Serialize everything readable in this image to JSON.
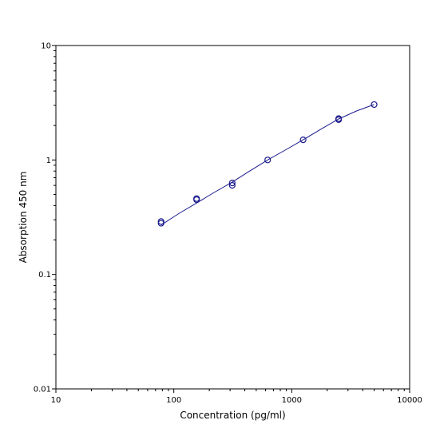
{
  "chart_data": {
    "type": "scatter",
    "title": "",
    "xlabel": "Concentration (pg/ml)",
    "ylabel": "Absorption 450 nm",
    "xscale": "log",
    "yscale": "log",
    "xlim": [
      10,
      10000
    ],
    "ylim": [
      0.01,
      10
    ],
    "x_ticks": [
      10,
      100,
      1000,
      10000
    ],
    "x_tick_labels": [
      "10",
      "100",
      "1000",
      "10000"
    ],
    "y_ticks": [
      0.01,
      0.1,
      1,
      10
    ],
    "y_tick_labels": [
      "0.01",
      "0.1",
      "1",
      "10"
    ],
    "grid": false,
    "legend": "none",
    "colors": {
      "points": "#1a1a8c",
      "curve": "#1a1a8c",
      "axes": "#000000"
    },
    "series": [
      {
        "values": [
          {
            "x": 78,
            "y": 0.29
          },
          {
            "x": 78,
            "y": 0.28
          },
          {
            "x": 156,
            "y": 0.46
          },
          {
            "x": 156,
            "y": 0.45
          },
          {
            "x": 313,
            "y": 0.63
          },
          {
            "x": 313,
            "y": 0.6
          },
          {
            "x": 625,
            "y": 1.0
          },
          {
            "x": 1250,
            "y": 1.5
          },
          {
            "x": 2500,
            "y": 2.3
          },
          {
            "x": 2500,
            "y": 2.25
          },
          {
            "x": 5000,
            "y": 3.05
          }
        ]
      }
    ],
    "fit_curve": [
      {
        "x": 78,
        "y": 0.27
      },
      {
        "x": 110,
        "y": 0.34
      },
      {
        "x": 156,
        "y": 0.42
      },
      {
        "x": 220,
        "y": 0.52
      },
      {
        "x": 313,
        "y": 0.64
      },
      {
        "x": 440,
        "y": 0.8
      },
      {
        "x": 625,
        "y": 1.0
      },
      {
        "x": 880,
        "y": 1.22
      },
      {
        "x": 1250,
        "y": 1.5
      },
      {
        "x": 1770,
        "y": 1.86
      },
      {
        "x": 2500,
        "y": 2.28
      },
      {
        "x": 3540,
        "y": 2.68
      },
      {
        "x": 5000,
        "y": 3.05
      }
    ]
  }
}
